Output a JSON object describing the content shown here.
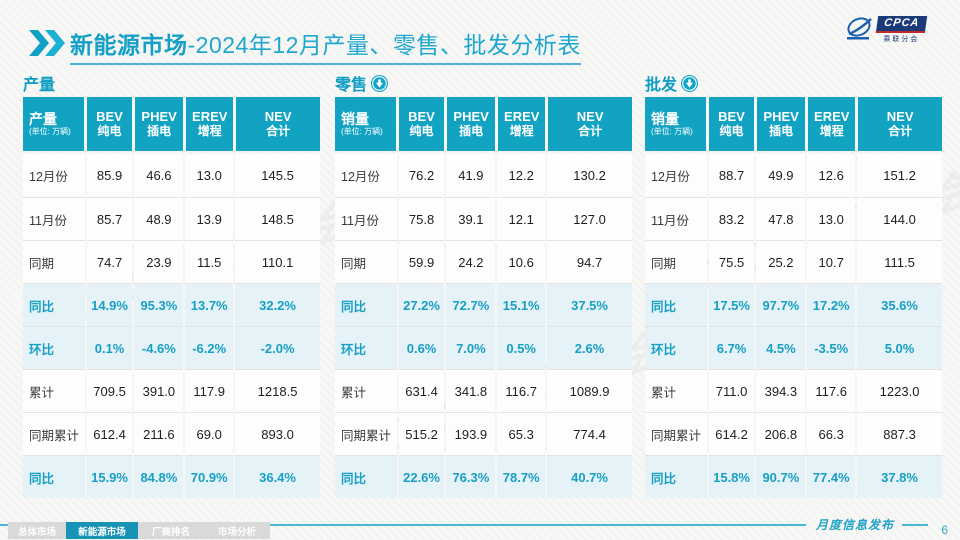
{
  "header": {
    "title_highlight": "新能源市场",
    "title_rest": "-2024年12月产量、零售、批发分析表",
    "logo_text": "CPCA",
    "logo_subtext": "乘联分会",
    "watermark_text": "CPCA 乘联分会"
  },
  "tables": [
    {
      "section": "产量",
      "arrow": false,
      "corner_title": "产量",
      "corner_unit": "(单位: 万辆)",
      "columns": [
        {
          "en": "BEV",
          "cn": "纯电"
        },
        {
          "en": "PHEV",
          "cn": "插电"
        },
        {
          "en": "EREV",
          "cn": "增程"
        },
        {
          "en": "NEV",
          "cn": "合计"
        }
      ],
      "rows": [
        {
          "label": "12月份",
          "values": [
            "85.9",
            "46.6",
            "13.0",
            "145.5"
          ],
          "highlight": false
        },
        {
          "label": "11月份",
          "values": [
            "85.7",
            "48.9",
            "13.9",
            "148.5"
          ],
          "highlight": false
        },
        {
          "label": "同期",
          "values": [
            "74.7",
            "23.9",
            "11.5",
            "110.1"
          ],
          "highlight": false
        },
        {
          "label": "同比",
          "values": [
            "14.9%",
            "95.3%",
            "13.7%",
            "32.2%"
          ],
          "highlight": true
        },
        {
          "label": "环比",
          "values": [
            "0.1%",
            "-4.6%",
            "-6.2%",
            "-2.0%"
          ],
          "highlight": true
        },
        {
          "label": "累计",
          "values": [
            "709.5",
            "391.0",
            "117.9",
            "1218.5"
          ],
          "highlight": false
        },
        {
          "label": "同期累计",
          "values": [
            "612.4",
            "211.6",
            "69.0",
            "893.0"
          ],
          "highlight": false
        },
        {
          "label": "同比",
          "values": [
            "15.9%",
            "84.8%",
            "70.9%",
            "36.4%"
          ],
          "highlight": true
        }
      ]
    },
    {
      "section": "零售",
      "arrow": true,
      "corner_title": "销量",
      "corner_unit": "(单位: 万辆)",
      "columns": [
        {
          "en": "BEV",
          "cn": "纯电"
        },
        {
          "en": "PHEV",
          "cn": "插电"
        },
        {
          "en": "EREV",
          "cn": "增程"
        },
        {
          "en": "NEV",
          "cn": "合计"
        }
      ],
      "rows": [
        {
          "label": "12月份",
          "values": [
            "76.2",
            "41.9",
            "12.2",
            "130.2"
          ],
          "highlight": false
        },
        {
          "label": "11月份",
          "values": [
            "75.8",
            "39.1",
            "12.1",
            "127.0"
          ],
          "highlight": false
        },
        {
          "label": "同期",
          "values": [
            "59.9",
            "24.2",
            "10.6",
            "94.7"
          ],
          "highlight": false
        },
        {
          "label": "同比",
          "values": [
            "27.2%",
            "72.7%",
            "15.1%",
            "37.5%"
          ],
          "highlight": true
        },
        {
          "label": "环比",
          "values": [
            "0.6%",
            "7.0%",
            "0.5%",
            "2.6%"
          ],
          "highlight": true
        },
        {
          "label": "累计",
          "values": [
            "631.4",
            "341.8",
            "116.7",
            "1089.9"
          ],
          "highlight": false
        },
        {
          "label": "同期累计",
          "values": [
            "515.2",
            "193.9",
            "65.3",
            "774.4"
          ],
          "highlight": false
        },
        {
          "label": "同比",
          "values": [
            "22.6%",
            "76.3%",
            "78.7%",
            "40.7%"
          ],
          "highlight": true
        }
      ]
    },
    {
      "section": "批发",
      "arrow": true,
      "corner_title": "销量",
      "corner_unit": "(单位: 万辆)",
      "columns": [
        {
          "en": "BEV",
          "cn": "纯电"
        },
        {
          "en": "PHEV",
          "cn": "插电"
        },
        {
          "en": "EREV",
          "cn": "增程"
        },
        {
          "en": "NEV",
          "cn": "合计"
        }
      ],
      "rows": [
        {
          "label": "12月份",
          "values": [
            "88.7",
            "49.9",
            "12.6",
            "151.2"
          ],
          "highlight": false
        },
        {
          "label": "11月份",
          "values": [
            "83.2",
            "47.8",
            "13.0",
            "144.0"
          ],
          "highlight": false
        },
        {
          "label": "同期",
          "values": [
            "75.5",
            "25.2",
            "10.7",
            "111.5"
          ],
          "highlight": false
        },
        {
          "label": "同比",
          "values": [
            "17.5%",
            "97.7%",
            "17.2%",
            "35.6%"
          ],
          "highlight": true
        },
        {
          "label": "环比",
          "values": [
            "6.7%",
            "4.5%",
            "-3.5%",
            "5.0%"
          ],
          "highlight": true
        },
        {
          "label": "累计",
          "values": [
            "711.0",
            "394.3",
            "117.6",
            "1223.0"
          ],
          "highlight": false
        },
        {
          "label": "同期累计",
          "values": [
            "614.2",
            "206.8",
            "66.3",
            "887.3"
          ],
          "highlight": false
        },
        {
          "label": "同比",
          "values": [
            "15.8%",
            "90.7%",
            "77.4%",
            "37.8%"
          ],
          "highlight": true
        }
      ]
    }
  ],
  "footer": {
    "tabs": [
      {
        "label": "总体市场",
        "active": false
      },
      {
        "label": "新能源市场",
        "active": true
      },
      {
        "label": "厂商排名",
        "active": false
      },
      {
        "label": "市场分析",
        "active": false
      }
    ],
    "publication": "月度信息发布",
    "page_number": "6"
  },
  "colors": {
    "accent": "#12a3c3",
    "highlight_bg": "#e5f2f8",
    "highlight_text": "#17a0c4",
    "logo_navy": "#1b3a78",
    "active_tab": "#1693b5"
  }
}
